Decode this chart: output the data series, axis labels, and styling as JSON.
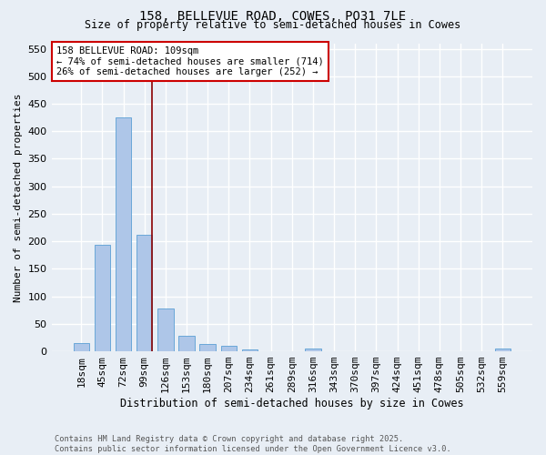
{
  "title1": "158, BELLEVUE ROAD, COWES, PO31 7LE",
  "title2": "Size of property relative to semi-detached houses in Cowes",
  "xlabel": "Distribution of semi-detached houses by size in Cowes",
  "ylabel": "Number of semi-detached properties",
  "bar_labels": [
    "18sqm",
    "45sqm",
    "72sqm",
    "99sqm",
    "126sqm",
    "153sqm",
    "180sqm",
    "207sqm",
    "234sqm",
    "261sqm",
    "289sqm",
    "316sqm",
    "343sqm",
    "370sqm",
    "397sqm",
    "424sqm",
    "451sqm",
    "478sqm",
    "505sqm",
    "532sqm",
    "559sqm"
  ],
  "bar_values": [
    15,
    194,
    425,
    212,
    78,
    28,
    13,
    10,
    3,
    0,
    0,
    5,
    0,
    0,
    0,
    0,
    0,
    0,
    0,
    0,
    5
  ],
  "bar_color": "#aec6e8",
  "bar_edge_color": "#5a9fd4",
  "vline_color": "#8b0000",
  "annotation_text": "158 BELLEVUE ROAD: 109sqm\n← 74% of semi-detached houses are smaller (714)\n26% of semi-detached houses are larger (252) →",
  "annotation_box_color": "white",
  "annotation_box_edge_color": "#cc0000",
  "ylim": [
    0,
    560
  ],
  "yticks": [
    0,
    50,
    100,
    150,
    200,
    250,
    300,
    350,
    400,
    450,
    500,
    550
  ],
  "bg_color": "#e8eef5",
  "footer_text": "Contains HM Land Registry data © Crown copyright and database right 2025.\nContains public sector information licensed under the Open Government Licence v3.0.",
  "grid_color": "#ffffff"
}
